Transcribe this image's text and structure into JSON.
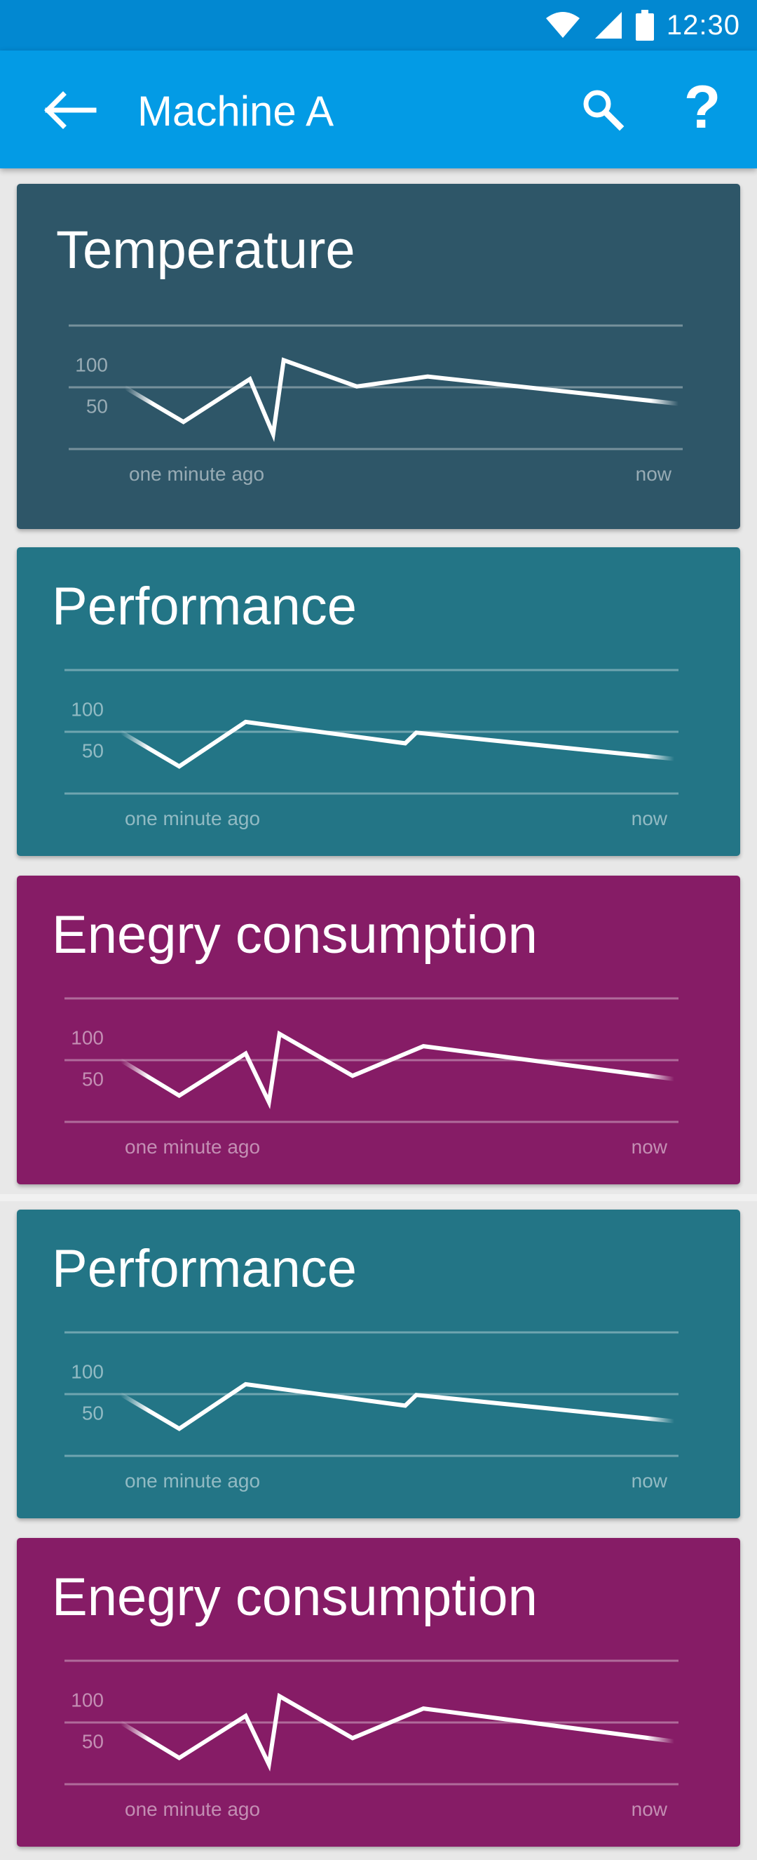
{
  "status_bar": {
    "time": "12:30",
    "icons": [
      "wifi-icon",
      "cellular-signal-icon",
      "battery-icon"
    ]
  },
  "app_bar": {
    "title": "Machine A",
    "back_icon": "arrow-left-icon",
    "actions": [
      {
        "name": "search",
        "icon": "search-icon"
      },
      {
        "name": "help",
        "icon": "help-icon",
        "label": "?"
      }
    ]
  },
  "colors": {
    "status_bar": "#0288d1",
    "app_bar": "#039be5",
    "temperature": "#2e5668",
    "performance": "#237586",
    "energy": "#861c66"
  },
  "cards": [
    {
      "title": "Temperature",
      "color": "#2e5668",
      "chart_data": {
        "type": "line",
        "y_ticks": [
          "100",
          "50"
        ],
        "ylim": [
          0,
          150
        ],
        "x_labels": [
          "one minute ago",
          "now"
        ],
        "values": [
          75,
          33,
          85,
          18,
          108,
          76,
          88,
          55
        ]
      }
    },
    {
      "title": "Performance",
      "color": "#237586",
      "chart_data": {
        "type": "line",
        "y_ticks": [
          "100",
          "50"
        ],
        "ylim": [
          0,
          150
        ],
        "x_labels": [
          "one minute ago",
          "now"
        ],
        "values": [
          75,
          33,
          87,
          61,
          74,
          42
        ]
      }
    },
    {
      "title": "Enegry consumption",
      "color": "#861c66",
      "chart_data": {
        "type": "line",
        "y_ticks": [
          "100",
          "50"
        ],
        "ylim": [
          0,
          150
        ],
        "x_labels": [
          "one minute ago",
          "now"
        ],
        "values": [
          75,
          32,
          83,
          24,
          107,
          56,
          92,
          52
        ]
      }
    },
    {
      "title": "Performance",
      "color": "#237586",
      "chart_data": {
        "type": "line",
        "y_ticks": [
          "100",
          "50"
        ],
        "ylim": [
          0,
          150
        ],
        "x_labels": [
          "one minute ago",
          "now"
        ],
        "values": [
          75,
          33,
          87,
          61,
          74,
          42
        ]
      }
    },
    {
      "title": "Enegry consumption",
      "color": "#861c66",
      "chart_data": {
        "type": "line",
        "y_ticks": [
          "100",
          "50"
        ],
        "ylim": [
          0,
          150
        ],
        "x_labels": [
          "one minute ago",
          "now"
        ],
        "values": [
          75,
          32,
          83,
          24,
          107,
          56,
          92,
          52
        ]
      }
    }
  ]
}
